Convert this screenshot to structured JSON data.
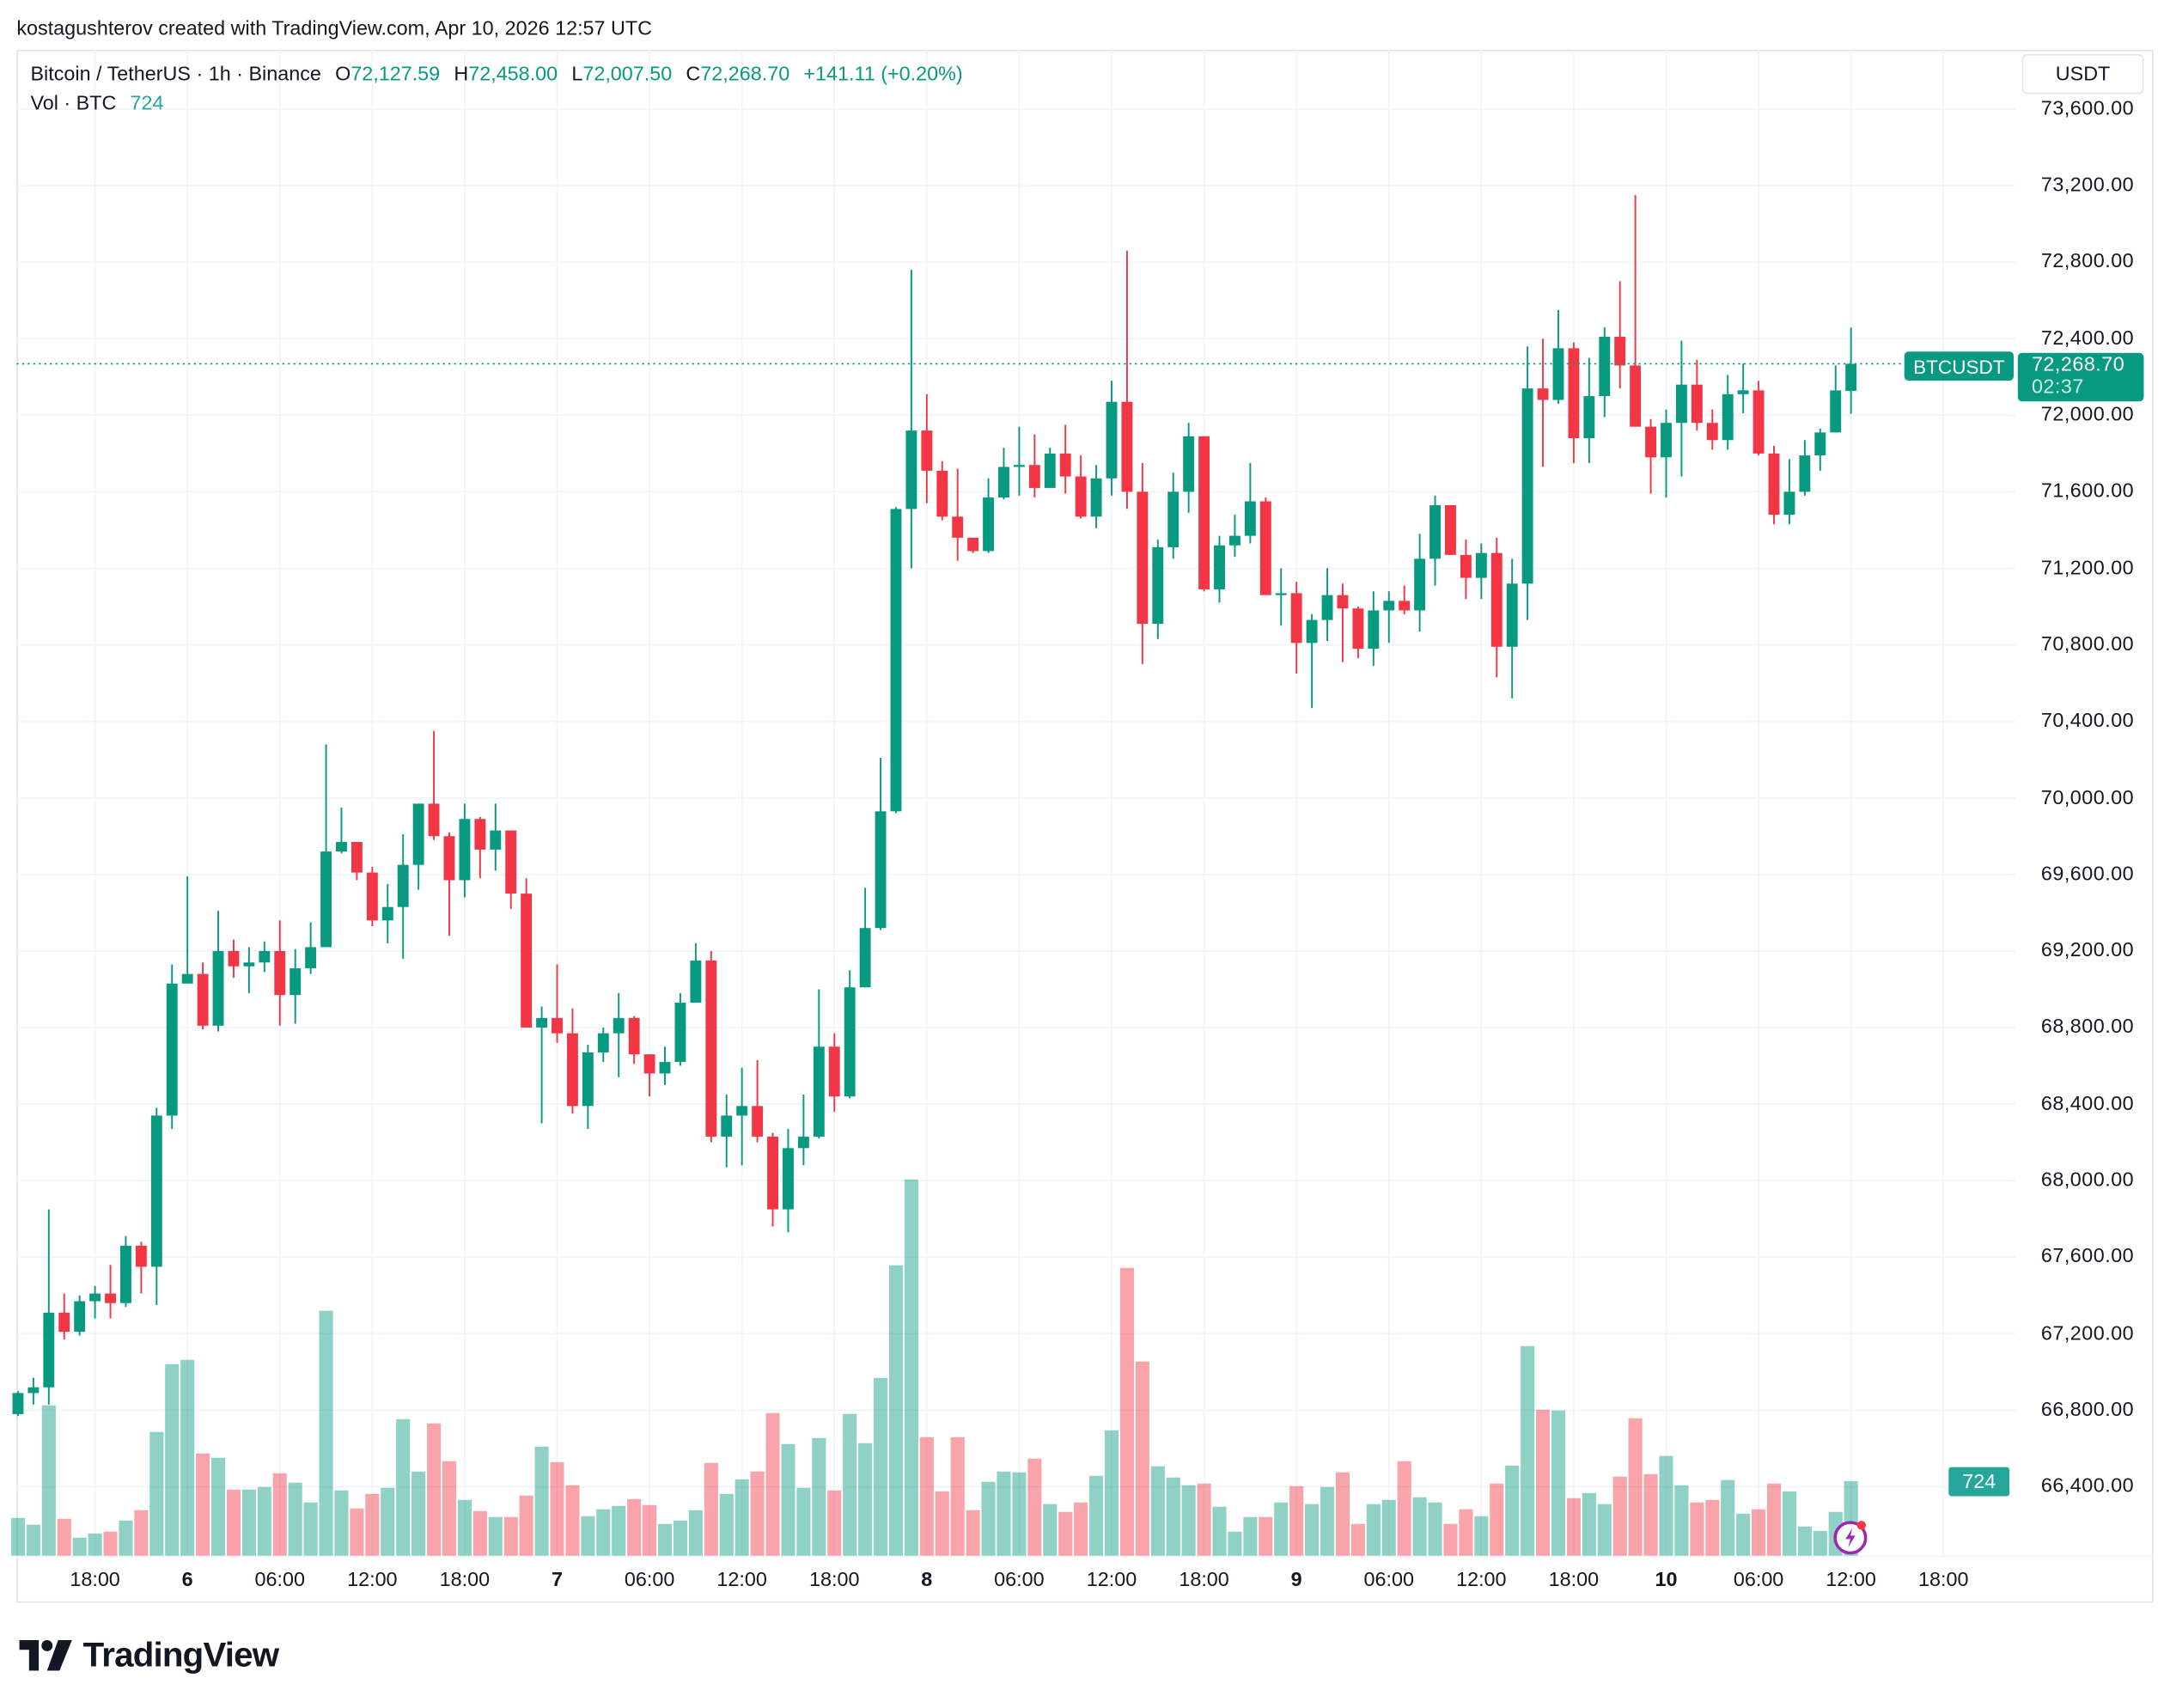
{
  "credit": "kostagushterov created with TradingView.com, Apr 10, 2026 12:57 UTC",
  "legend": {
    "symbol": "Bitcoin / TetherUS · 1h · Binance",
    "o_label": "O",
    "o": "72,127.59",
    "h_label": "H",
    "h": "72,458.00",
    "l_label": "L",
    "l": "72,007.50",
    "c_label": "C",
    "c": "72,268.70",
    "change": "+141.11 (+0.20%)",
    "vol_label": "Vol · BTC",
    "vol": "724"
  },
  "currency_button": "USDT",
  "last_price": {
    "symbol": "BTCUSDT",
    "price": "72,268.70",
    "countdown": "02:37"
  },
  "volume_badge": "724",
  "logo": {
    "text": "TradingView"
  },
  "colors": {
    "up": "#089981",
    "down": "#F23645",
    "grid": "#f0f3fa",
    "text": "#131722"
  },
  "icons": {
    "alert": "lightning-icon"
  },
  "chart_data": {
    "type": "candlestick",
    "symbol": "BTCUSDT",
    "interval": "1h",
    "ylim": [
      66200,
      73800
    ],
    "y_ticks": [
      "73,600.00",
      "73,200.00",
      "72,800.00",
      "72,400.00",
      "72,000.00",
      "71,600.00",
      "71,200.00",
      "70,800.00",
      "70,400.00",
      "70,000.00",
      "69,600.00",
      "69,200.00",
      "68,800.00",
      "68,400.00",
      "68,000.00",
      "67,600.00",
      "67,200.00",
      "66,800.00",
      "66,400.00"
    ],
    "x_ticks": [
      {
        "label": "18:00",
        "day": false
      },
      {
        "label": "6",
        "day": true
      },
      {
        "label": "06:00",
        "day": false
      },
      {
        "label": "12:00",
        "day": false
      },
      {
        "label": "18:00",
        "day": false
      },
      {
        "label": "7",
        "day": true
      },
      {
        "label": "06:00",
        "day": false
      },
      {
        "label": "12:00",
        "day": false
      },
      {
        "label": "18:00",
        "day": false
      },
      {
        "label": "8",
        "day": true
      },
      {
        "label": "06:00",
        "day": false
      },
      {
        "label": "12:00",
        "day": false
      },
      {
        "label": "18:00",
        "day": false
      },
      {
        "label": "9",
        "day": true
      },
      {
        "label": "06:00",
        "day": false
      },
      {
        "label": "12:00",
        "day": false
      },
      {
        "label": "18:00",
        "day": false
      },
      {
        "label": "10",
        "day": true
      },
      {
        "label": "06:00",
        "day": false
      },
      {
        "label": "12:00",
        "day": false
      },
      {
        "label": "18:00",
        "day": false
      }
    ],
    "grid": true,
    "ohlc_fields": [
      "open",
      "high",
      "low",
      "close"
    ],
    "candles": [
      [
        66780,
        66900,
        66770,
        66890
      ],
      [
        66890,
        66970,
        66830,
        66920
      ],
      [
        66920,
        67850,
        66830,
        67310
      ],
      [
        67310,
        67410,
        67170,
        67210
      ],
      [
        67210,
        67400,
        67190,
        67370
      ],
      [
        67370,
        67450,
        67280,
        67410
      ],
      [
        67410,
        67560,
        67280,
        67360
      ],
      [
        67360,
        67710,
        67340,
        67660
      ],
      [
        67660,
        67680,
        67410,
        67550
      ],
      [
        67550,
        68380,
        67350,
        68340
      ],
      [
        68340,
        69130,
        68270,
        69030
      ],
      [
        69030,
        69590,
        69030,
        69080
      ],
      [
        69080,
        69140,
        68790,
        68810
      ],
      [
        68810,
        69410,
        68780,
        69200
      ],
      [
        69200,
        69260,
        69060,
        69120
      ],
      [
        69120,
        69220,
        68980,
        69140
      ],
      [
        69140,
        69250,
        69090,
        69200
      ],
      [
        69200,
        69360,
        68810,
        68970
      ],
      [
        68970,
        69210,
        68820,
        69110
      ],
      [
        69110,
        69350,
        69080,
        69220
      ],
      [
        69220,
        70280,
        69220,
        69720
      ],
      [
        69720,
        69950,
        69710,
        69770
      ],
      [
        69770,
        69770,
        69570,
        69610
      ],
      [
        69610,
        69640,
        69330,
        69360
      ],
      [
        69360,
        69550,
        69240,
        69430
      ],
      [
        69430,
        69810,
        69160,
        69650
      ],
      [
        69650,
        69970,
        69520,
        69970
      ],
      [
        69970,
        70350,
        69780,
        69800
      ],
      [
        69800,
        69820,
        69280,
        69570
      ],
      [
        69570,
        69970,
        69480,
        69890
      ],
      [
        69890,
        69900,
        69580,
        69730
      ],
      [
        69730,
        69970,
        69620,
        69830
      ],
      [
        69830,
        69830,
        69420,
        69500
      ],
      [
        69500,
        69580,
        68800,
        68800
      ],
      [
        68800,
        68910,
        68300,
        68850
      ],
      [
        68850,
        69130,
        68720,
        68770
      ],
      [
        68770,
        68900,
        68350,
        68390
      ],
      [
        68390,
        68710,
        68270,
        68670
      ],
      [
        68670,
        68800,
        68620,
        68770
      ],
      [
        68770,
        68980,
        68540,
        68850
      ],
      [
        68850,
        68860,
        68610,
        68660
      ],
      [
        68660,
        68660,
        68440,
        68560
      ],
      [
        68560,
        68700,
        68500,
        68620
      ],
      [
        68620,
        68980,
        68600,
        68930
      ],
      [
        68930,
        69240,
        68930,
        69150
      ],
      [
        69150,
        69200,
        68200,
        68230
      ],
      [
        68230,
        68450,
        68070,
        68340
      ],
      [
        68340,
        68590,
        68080,
        68390
      ],
      [
        68390,
        68630,
        68200,
        68230
      ],
      [
        68230,
        68250,
        67760,
        67850
      ],
      [
        67850,
        68270,
        67730,
        68170
      ],
      [
        68170,
        68450,
        68080,
        68230
      ],
      [
        68230,
        69000,
        68220,
        68700
      ],
      [
        68700,
        68770,
        68360,
        68440
      ],
      [
        68440,
        69100,
        68430,
        69010
      ],
      [
        69010,
        69530,
        69010,
        69320
      ],
      [
        69320,
        70210,
        69310,
        69930
      ],
      [
        69930,
        71520,
        69920,
        71510
      ],
      [
        71510,
        72760,
        71200,
        71920
      ],
      [
        71920,
        72110,
        71540,
        71710
      ],
      [
        71710,
        71760,
        71450,
        71470
      ],
      [
        71470,
        71720,
        71240,
        71360
      ],
      [
        71360,
        71360,
        71280,
        71290
      ],
      [
        71290,
        71670,
        71280,
        71570
      ],
      [
        71570,
        71830,
        71560,
        71730
      ],
      [
        71730,
        71940,
        71580,
        71740
      ],
      [
        71740,
        71900,
        71570,
        71620
      ],
      [
        71620,
        71830,
        71620,
        71800
      ],
      [
        71800,
        71950,
        71590,
        71680
      ],
      [
        71680,
        71790,
        71460,
        71470
      ],
      [
        71470,
        71740,
        71410,
        71670
      ],
      [
        71670,
        72180,
        71580,
        72070
      ],
      [
        72070,
        72860,
        71510,
        71600
      ],
      [
        71600,
        71750,
        70700,
        70910
      ],
      [
        70910,
        71350,
        70830,
        71310
      ],
      [
        71310,
        71700,
        71250,
        71600
      ],
      [
        71600,
        71960,
        71490,
        71890
      ],
      [
        71890,
        71890,
        71080,
        71090
      ],
      [
        71090,
        71370,
        71020,
        71320
      ],
      [
        71320,
        71480,
        71260,
        71370
      ],
      [
        71370,
        71750,
        71330,
        71550
      ],
      [
        71550,
        71570,
        71060,
        71060
      ],
      [
        71060,
        71200,
        70900,
        71070
      ],
      [
        71070,
        71130,
        70650,
        70810
      ],
      [
        70810,
        70960,
        70470,
        70930
      ],
      [
        70930,
        71200,
        70820,
        71060
      ],
      [
        71060,
        71120,
        70710,
        70990
      ],
      [
        70990,
        71000,
        70730,
        70780
      ],
      [
        70780,
        71080,
        70690,
        70980
      ],
      [
        70980,
        71080,
        70810,
        71030
      ],
      [
        71030,
        71110,
        70960,
        70980
      ],
      [
        70980,
        71380,
        70870,
        71250
      ],
      [
        71250,
        71580,
        71110,
        71530
      ],
      [
        71530,
        71530,
        71270,
        71270
      ],
      [
        71270,
        71350,
        71040,
        71150
      ],
      [
        71150,
        71330,
        71040,
        71280
      ],
      [
        71280,
        71360,
        70630,
        70790
      ],
      [
        70790,
        71250,
        70520,
        71120
      ],
      [
        71120,
        72360,
        70930,
        72140
      ],
      [
        72140,
        72400,
        71730,
        72080
      ],
      [
        72080,
        72550,
        72060,
        72350
      ],
      [
        72350,
        72380,
        71750,
        71880
      ],
      [
        71880,
        72300,
        71750,
        72100
      ],
      [
        72100,
        72460,
        71990,
        72410
      ],
      [
        72410,
        72700,
        72140,
        72260
      ],
      [
        72260,
        73150,
        71940,
        71940
      ],
      [
        71940,
        71980,
        71590,
        71780
      ],
      [
        71780,
        72030,
        71570,
        71960
      ],
      [
        71960,
        72390,
        71680,
        72160
      ],
      [
        72160,
        72290,
        71920,
        71960
      ],
      [
        71960,
        72030,
        71820,
        71870
      ],
      [
        71870,
        72210,
        71820,
        72110
      ],
      [
        72110,
        72270,
        72010,
        72130
      ],
      [
        72130,
        72180,
        71790,
        71800
      ],
      [
        71800,
        71840,
        71430,
        71480
      ],
      [
        71480,
        71770,
        71430,
        71600
      ],
      [
        71600,
        71870,
        71580,
        71790
      ],
      [
        71790,
        71930,
        71710,
        71910
      ],
      [
        71910,
        72260,
        71910,
        72130
      ],
      [
        72127.59,
        72458,
        72007.5,
        72268.7
      ]
    ],
    "volume": [
      366,
      300,
      1457,
      358,
      175,
      216,
      233,
      341,
      441,
      1199,
      1856,
      1898,
      991,
      949,
      641,
      641,
      666,
      799,
      708,
      516,
      2373,
      633,
      458,
      599,
      658,
      1324,
      816,
      1282,
      916,
      541,
      433,
      375,
      375,
      583,
      1057,
      907,
      683,
      383,
      450,
      483,
      549,
      491,
      308,
      341,
      441,
      899,
      599,
      741,
      816,
      1382,
      1082,
      658,
      1141,
      633,
      1374,
      1091,
      1723,
      2814,
      3646,
      1149,
      624,
      1149,
      441,
      716,
      816,
      808,
      941,
      500,
      425,
      516,
      774,
      1215,
      2789,
      1881,
      866,
      758,
      683,
      699,
      475,
      233,
      375,
      375,
      516,
      674,
      500,
      666,
      808,
      308,
      500,
      541,
      916,
      566,
      516,
      308,
      450,
      383,
      699,
      874,
      2031,
      1415,
      1407,
      558,
      608,
      500,
      766,
      1332,
      791,
      966,
      683,
      516,
      541,
      733,
      408,
      450,
      699,
      624,
      283,
      241,
      425,
      724
    ],
    "last_price": 72268.7
  }
}
